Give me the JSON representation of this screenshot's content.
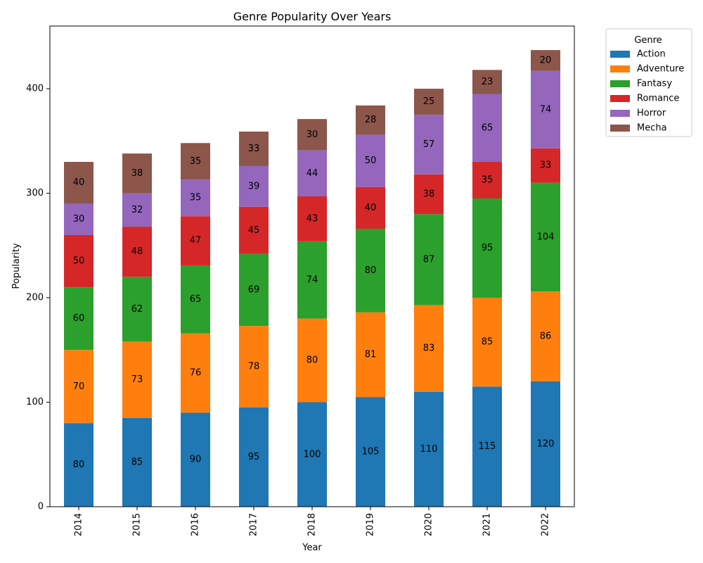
{
  "chart_data": {
    "type": "bar",
    "stacked": true,
    "title": "Genre Popularity Over Years",
    "xlabel": "Year",
    "ylabel": "Popularity",
    "categories": [
      "2014",
      "2015",
      "2016",
      "2017",
      "2018",
      "2019",
      "2020",
      "2021",
      "2022"
    ],
    "ylim": [
      0,
      460
    ],
    "yticks": [
      0,
      100,
      200,
      300,
      400
    ],
    "grid": false,
    "legend": {
      "title": "Genre",
      "placement": "outside-top-right"
    },
    "series": [
      {
        "name": "Action",
        "color": "#1f77b4",
        "values": [
          80,
          85,
          90,
          95,
          100,
          105,
          110,
          115,
          120
        ]
      },
      {
        "name": "Adventure",
        "color": "#ff7f0e",
        "values": [
          70,
          73,
          76,
          78,
          80,
          81,
          83,
          85,
          86
        ]
      },
      {
        "name": "Fantasy",
        "color": "#2ca02c",
        "values": [
          60,
          62,
          65,
          69,
          74,
          80,
          87,
          95,
          104
        ]
      },
      {
        "name": "Romance",
        "color": "#d62728",
        "values": [
          50,
          48,
          47,
          45,
          43,
          40,
          38,
          35,
          33
        ]
      },
      {
        "name": "Horror",
        "color": "#9467bd",
        "values": [
          30,
          32,
          35,
          39,
          44,
          50,
          57,
          65,
          74
        ]
      },
      {
        "name": "Mecha",
        "color": "#8c564b",
        "values": [
          40,
          38,
          35,
          33,
          30,
          28,
          25,
          23,
          20
        ]
      }
    ]
  }
}
